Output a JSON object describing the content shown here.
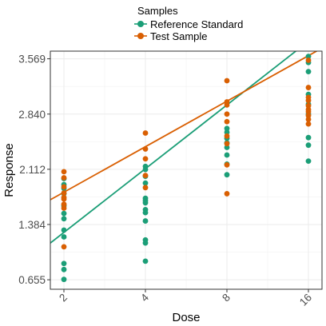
{
  "chart_data": {
    "type": "scatter",
    "xlabel": "Dose",
    "ylabel": "Response",
    "legend": {
      "title": "Samples",
      "position": "top"
    },
    "x_scale": "log2",
    "x_ticks": [
      "2",
      "4",
      "8",
      "16"
    ],
    "y_ticks": [
      "0.655",
      "1.384",
      "2.112",
      "2.840",
      "3.569"
    ],
    "xlim": [
      2,
      16
    ],
    "ylim": [
      0.53,
      3.67
    ],
    "grid": true,
    "series": [
      {
        "name": "Reference Standard",
        "color": "#1b9e77",
        "points": [
          [
            2,
            0.66
          ],
          [
            2,
            0.79
          ],
          [
            2,
            0.87
          ],
          [
            2,
            1.22
          ],
          [
            2,
            1.31
          ],
          [
            2,
            1.46
          ],
          [
            2,
            1.53
          ],
          [
            2,
            1.63
          ],
          [
            2,
            1.79
          ],
          [
            2,
            1.86
          ],
          [
            2,
            1.91
          ],
          [
            2,
            1.99
          ],
          [
            4,
            0.9
          ],
          [
            4,
            1.14
          ],
          [
            4,
            1.18
          ],
          [
            4,
            1.43
          ],
          [
            4,
            1.54
          ],
          [
            4,
            1.58
          ],
          [
            4,
            1.67
          ],
          [
            4,
            1.7
          ],
          [
            4,
            1.73
          ],
          [
            4,
            1.93
          ],
          [
            4,
            2.02
          ],
          [
            4,
            2.11
          ],
          [
            4,
            2.15
          ],
          [
            8,
            2.04
          ],
          [
            8,
            2.18
          ],
          [
            8,
            2.3
          ],
          [
            8,
            2.4
          ],
          [
            8,
            2.46
          ],
          [
            8,
            2.52
          ],
          [
            8,
            2.6
          ],
          [
            8,
            2.65
          ],
          [
            16,
            2.22
          ],
          [
            16,
            2.43
          ],
          [
            16,
            2.53
          ],
          [
            16,
            2.84
          ],
          [
            16,
            2.97
          ],
          [
            16,
            3.1
          ],
          [
            16,
            3.4
          ],
          [
            16,
            3.52
          ],
          [
            16,
            3.6
          ]
        ],
        "fit": {
          "intercept": 0.44,
          "slope": 0.84
        }
      },
      {
        "name": "Test Sample",
        "color": "#d95f02",
        "points": [
          [
            2,
            1.09
          ],
          [
            2,
            1.6
          ],
          [
            2,
            1.65
          ],
          [
            2,
            1.72
          ],
          [
            2,
            1.74
          ],
          [
            2,
            1.8
          ],
          [
            2,
            1.88
          ],
          [
            2,
            2.0
          ],
          [
            2,
            2.08
          ],
          [
            4,
            1.87
          ],
          [
            4,
            2.03
          ],
          [
            4,
            2.25
          ],
          [
            4,
            2.38
          ],
          [
            4,
            2.59
          ],
          [
            8,
            1.79
          ],
          [
            8,
            2.17
          ],
          [
            8,
            2.45
          ],
          [
            8,
            2.55
          ],
          [
            8,
            2.74
          ],
          [
            8,
            2.84
          ],
          [
            8,
            2.96
          ],
          [
            8,
            3.0
          ],
          [
            8,
            3.28
          ],
          [
            16,
            2.71
          ],
          [
            16,
            2.77
          ],
          [
            16,
            2.82
          ],
          [
            16,
            2.87
          ],
          [
            16,
            2.9
          ],
          [
            16,
            2.95
          ],
          [
            16,
            3.02
          ],
          [
            16,
            3.06
          ],
          [
            16,
            3.19
          ],
          [
            16,
            3.55
          ]
        ],
        "fit": {
          "intercept": 1.21,
          "slope": 0.6
        }
      }
    ]
  }
}
